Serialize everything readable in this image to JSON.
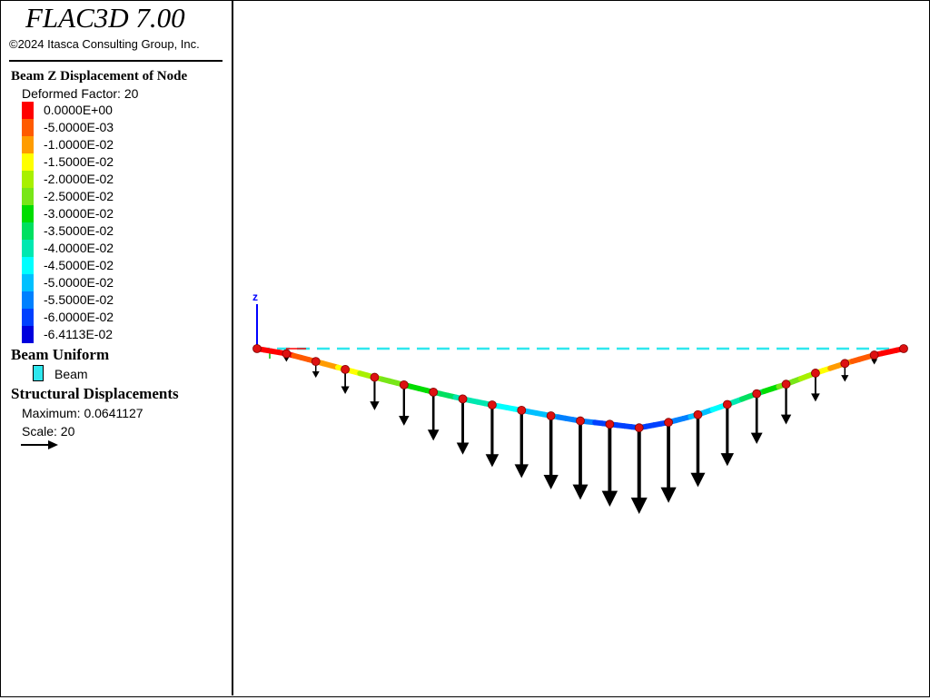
{
  "app": {
    "title": "FLAC3D 7.00",
    "copyright": "©2024 Itasca Consulting Group, Inc."
  },
  "legend": {
    "contour_title": "Beam Z Displacement of Node",
    "deformed_factor": "Deformed Factor: 20",
    "bands": [
      {
        "label": "0.0000E+00",
        "color": "#ff0000"
      },
      {
        "label": "-5.0000E-03",
        "color": "#ff5a00"
      },
      {
        "label": "-1.0000E-02",
        "color": "#ff9c00"
      },
      {
        "label": "-1.5000E-02",
        "color": "#ffff00"
      },
      {
        "label": "-2.0000E-02",
        "color": "#a8f000"
      },
      {
        "label": "-2.5000E-02",
        "color": "#78e618"
      },
      {
        "label": "-3.0000E-02",
        "color": "#00dd00"
      },
      {
        "label": "-3.5000E-02",
        "color": "#00e060"
      },
      {
        "label": "-4.0000E-02",
        "color": "#00e8b0"
      },
      {
        "label": "-4.5000E-02",
        "color": "#00ffff"
      },
      {
        "label": "-5.0000E-02",
        "color": "#00c0ff"
      },
      {
        "label": "-5.5000E-02",
        "color": "#0080ff"
      },
      {
        "label": "-6.0000E-02",
        "color": "#0040ff"
      },
      {
        "label": "-6.4113E-02",
        "color": "#0000dd"
      }
    ],
    "beam_uniform_title": "Beam Uniform",
    "beam_label": "Beam",
    "beam_color": "#2fe7ee",
    "structural_title": "Structural Displacements",
    "maximum": "Maximum: 0.0641127",
    "scale": "Scale: 20"
  },
  "viewport": {
    "axis_label": "z",
    "axis_color": "#0000ff",
    "reference_color": "#2fe7ee",
    "node_color": "#dd1111",
    "beam_nodes_dz": [
      0.0,
      -0.0041,
      -0.0104,
      -0.0168,
      -0.0232,
      -0.0293,
      -0.0352,
      -0.0407,
      -0.0456,
      -0.0499,
      -0.0544,
      -0.0585,
      -0.0612,
      -0.0641,
      -0.0597,
      -0.0535,
      -0.0452,
      -0.0365,
      -0.0288,
      -0.0198,
      -0.012,
      -0.0052,
      0.0
    ]
  }
}
